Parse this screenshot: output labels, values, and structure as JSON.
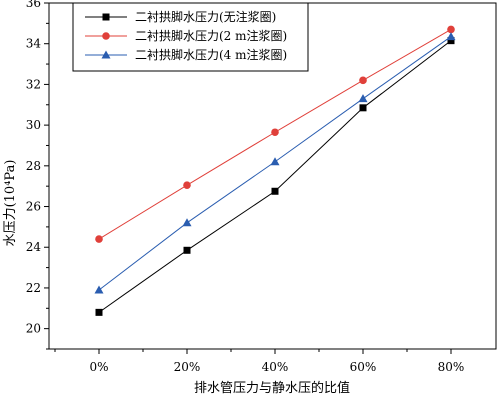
{
  "chart_data": {
    "type": "line",
    "title": "",
    "xlabel": "排水管压力与静水压的比值",
    "ylabel": "水压力(10⁴Pa)",
    "categories": [
      "0%",
      "20%",
      "40%",
      "60%",
      "80%"
    ],
    "ylim": [
      19,
      36
    ],
    "yticks": [
      20,
      22,
      24,
      26,
      28,
      30,
      32,
      34,
      36
    ],
    "grid": false,
    "legend_position": "top-left",
    "series": [
      {
        "name": "二衬拱脚水压力(无注浆圈)",
        "values": [
          20.8,
          23.85,
          26.75,
          30.85,
          34.15
        ],
        "color": "#000000",
        "marker": "square"
      },
      {
        "name": "二衬拱脚水压力(2 m注浆圈)",
        "values": [
          24.4,
          27.05,
          29.65,
          32.2,
          34.7
        ],
        "color": "#e0403a",
        "marker": "circle"
      },
      {
        "name": "二衬拱脚水压力(4 m注浆圈)",
        "values": [
          21.9,
          25.2,
          28.2,
          31.3,
          34.35
        ],
        "color": "#2a5db0",
        "marker": "triangle"
      }
    ]
  }
}
